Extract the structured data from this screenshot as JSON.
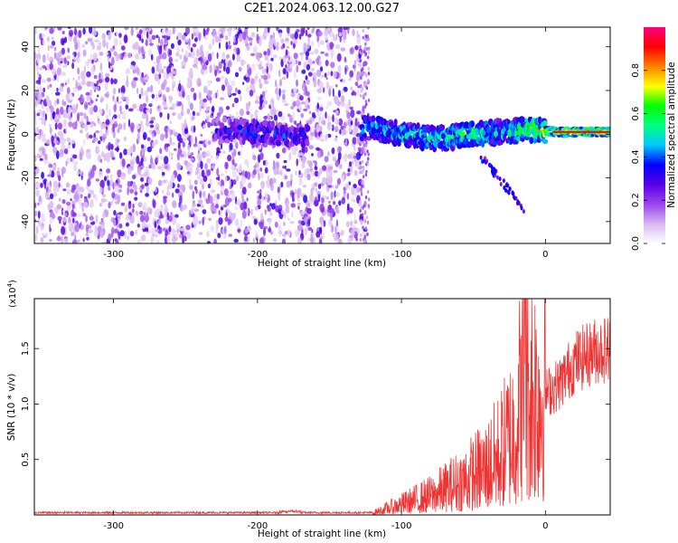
{
  "title": "C2E1.2024.063.12.00.G27",
  "chart_data": [
    {
      "type": "heatmap",
      "xlabel": "Height of straight line (km)",
      "ylabel": "Frequency (Hz)",
      "xlim": [
        -355,
        45
      ],
      "ylim": [
        -50,
        49
      ],
      "x_ticks": [
        -300,
        -200,
        -100,
        0
      ],
      "y_ticks": [
        -40,
        -20,
        0,
        20,
        40
      ],
      "colorbar": {
        "label": "Normalized spectral amplitude",
        "range": [
          0,
          1
        ],
        "ticks": [
          "0.0",
          "0.2",
          "0.4",
          "0.6",
          "0.8"
        ],
        "colors": [
          "#ffffff",
          "#d8b8f0",
          "#9a45ee",
          "#5a00e6",
          "#0000ff",
          "#00c8ff",
          "#00ff80",
          "#00ff00",
          "#ffff00",
          "#ff8000",
          "#ff0000",
          "#ff0080"
        ]
      },
      "ridge": [
        {
          "x": -230,
          "freq": 2,
          "amp": 0.35
        },
        {
          "x": -200,
          "freq": 1,
          "amp": 0.45
        },
        {
          "x": -175,
          "freq": -1,
          "amp": 0.4
        },
        {
          "x": -120,
          "freq": 3,
          "amp": 0.55
        },
        {
          "x": -100,
          "freq": 0,
          "amp": 0.6
        },
        {
          "x": -75,
          "freq": -2,
          "amp": 0.6
        },
        {
          "x": -50,
          "freq": 0,
          "amp": 0.65
        },
        {
          "x": -30,
          "freq": 1,
          "amp": 0.6
        },
        {
          "x": -10,
          "freq": 2,
          "amp": 0.75
        },
        {
          "x": 10,
          "freq": 1,
          "amp": 0.9
        },
        {
          "x": 45,
          "freq": 1,
          "amp": 0.95
        }
      ],
      "noise_extent_x": [
        -355,
        -125
      ]
    },
    {
      "type": "line",
      "xlabel": "Height of straight line (km)",
      "ylabel": "SNR (10 * v/v)",
      "y_multiplier_label": "(x10",
      "y_multiplier_exp": "4",
      "xlim": [
        -355,
        45
      ],
      "ylim": [
        0,
        1.95
      ],
      "x_ticks": [
        -300,
        -200,
        -100,
        0
      ],
      "y_ticks": [
        "0.5",
        "1.0",
        "1.5"
      ],
      "line_color": "#ee3333",
      "envelope": [
        {
          "x": -355,
          "y": 0.02
        },
        {
          "x": -120,
          "y": 0.02
        },
        {
          "x": -105,
          "y": 0.08
        },
        {
          "x": -80,
          "y": 0.18
        },
        {
          "x": -60,
          "y": 0.3
        },
        {
          "x": -40,
          "y": 0.45
        },
        {
          "x": -30,
          "y": 0.6
        },
        {
          "x": -22,
          "y": 0.8
        },
        {
          "x": -15,
          "y": 1.2
        },
        {
          "x": 0,
          "y": 1.15
        },
        {
          "x": 10,
          "y": 1.25
        },
        {
          "x": 20,
          "y": 1.45
        },
        {
          "x": 35,
          "y": 1.56
        },
        {
          "x": 45,
          "y": 1.58
        }
      ],
      "peak": {
        "x": -14,
        "y": 2.0
      }
    }
  ]
}
